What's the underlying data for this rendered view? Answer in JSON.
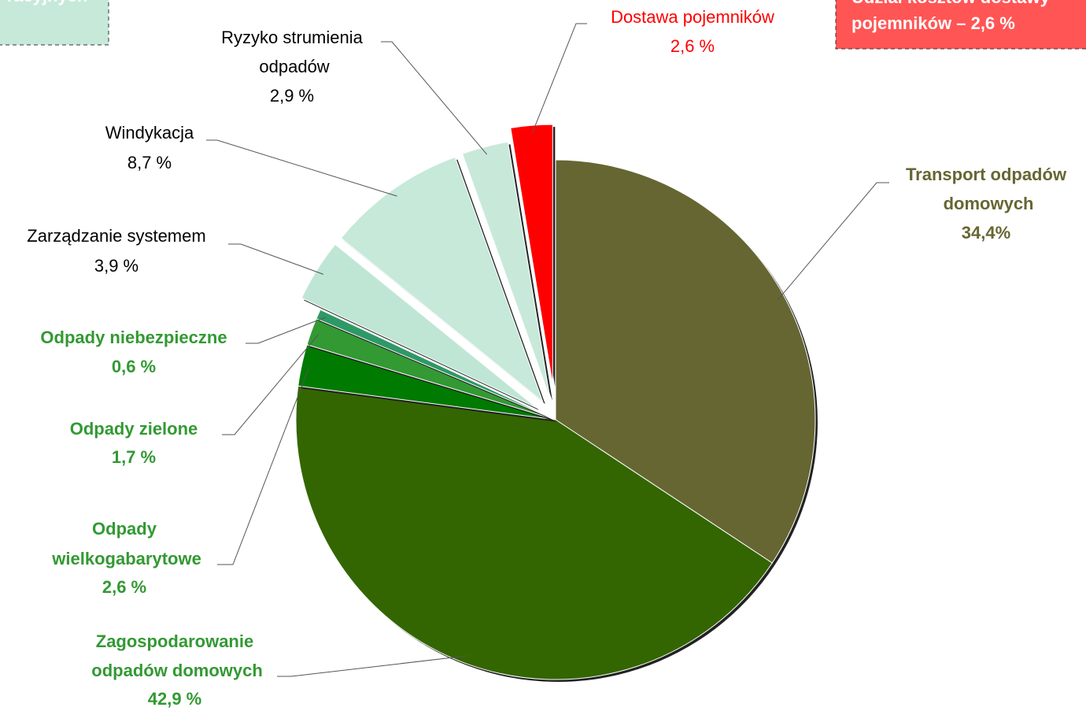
{
  "chart_data": {
    "type": "pie",
    "categories": [
      "Transport odpadów domowych",
      "Zagospodarowanie odpadów domowych",
      "Odpady wielkogabarytowe",
      "Odpady zielone",
      "Odpady niebezpieczne",
      "Zarządzanie systemem",
      "Windykacja",
      "Ryzyko strumienia odpadów",
      "Dostawa pojemników"
    ],
    "values": [
      34.4,
      42.9,
      2.6,
      1.7,
      0.6,
      3.9,
      8.7,
      2.9,
      2.6
    ],
    "value_labels": [
      "34,4%",
      "42,9 %",
      "2,6 %",
      "1,7 %",
      "0,6 %",
      "3,9 %",
      "8,7 %",
      "2,9 %",
      "2,6 %"
    ],
    "colors": [
      "#666633",
      "#336600",
      "#007a00",
      "#339933",
      "#2e9966",
      "#bfe6d4",
      "#c6e9da",
      "#c8e9da",
      "#ff0000"
    ],
    "label_colors": [
      "#666633",
      "#339933",
      "#339933",
      "#339933",
      "#339933",
      "#000000",
      "#000000",
      "#000000",
      "#ff0000"
    ],
    "exploded": [
      false,
      false,
      false,
      false,
      false,
      true,
      true,
      true,
      true
    ],
    "annotations": [
      "racyjnych",
      "Udział kosztów dostawy",
      "pojemników – 2,6 %"
    ]
  }
}
